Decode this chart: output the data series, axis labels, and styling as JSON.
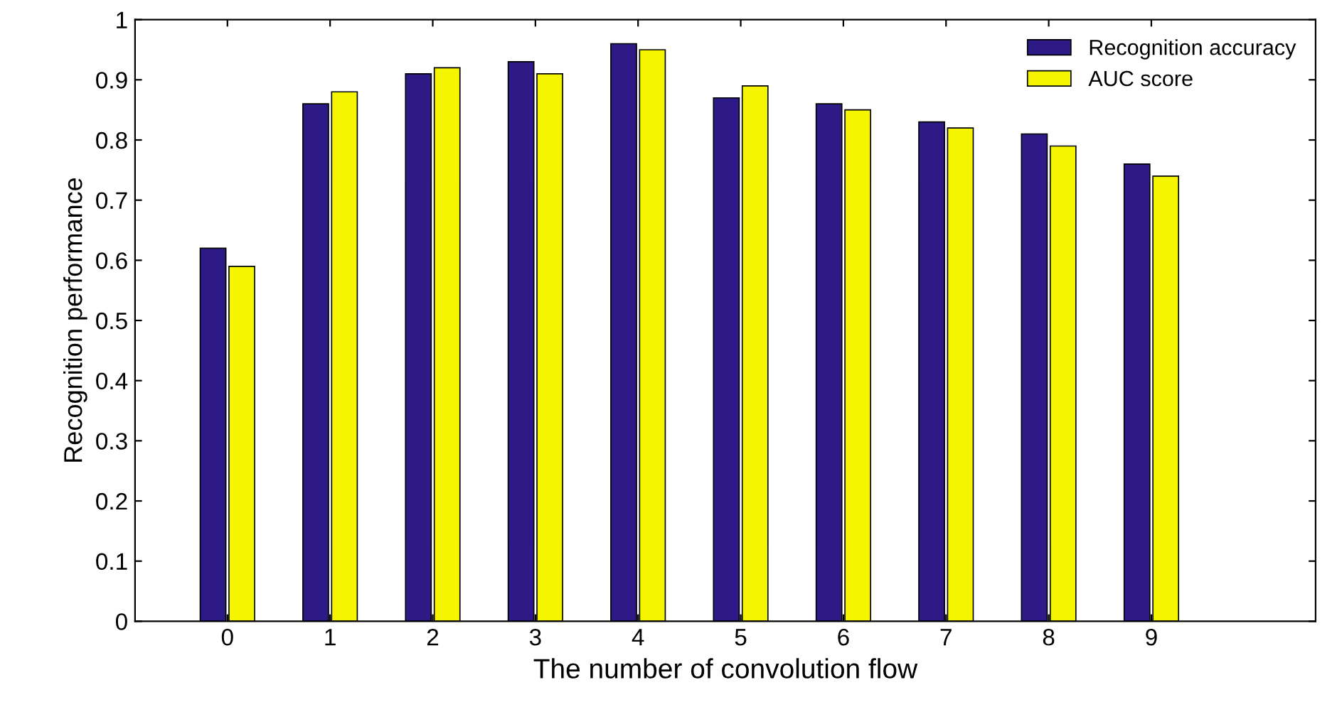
{
  "chart_data": {
    "type": "bar",
    "xlabel": "The number of convolution flow",
    "ylabel": "Recognition performance",
    "x": [
      0,
      1,
      2,
      3,
      4,
      5,
      6,
      7,
      8,
      9
    ],
    "series": [
      {
        "name": "Recognition accuracy",
        "color": "#2e1a87",
        "values": [
          0.62,
          0.86,
          0.91,
          0.93,
          0.96,
          0.87,
          0.86,
          0.83,
          0.81,
          0.76
        ]
      },
      {
        "name": "AUC score",
        "color": "#f5f500",
        "values": [
          0.59,
          0.88,
          0.92,
          0.91,
          0.95,
          0.89,
          0.85,
          0.82,
          0.79,
          0.74
        ]
      }
    ],
    "xlim": [
      -0.9,
      10.6
    ],
    "xticks": [
      0,
      1,
      2,
      3,
      4,
      5,
      6,
      7,
      8,
      9
    ],
    "ylim": [
      0,
      1
    ],
    "yticks": [
      0,
      0.1,
      0.2,
      0.3,
      0.4,
      0.5,
      0.6,
      0.7,
      0.8,
      0.9,
      1
    ],
    "legend": "top right",
    "grid": false
  }
}
